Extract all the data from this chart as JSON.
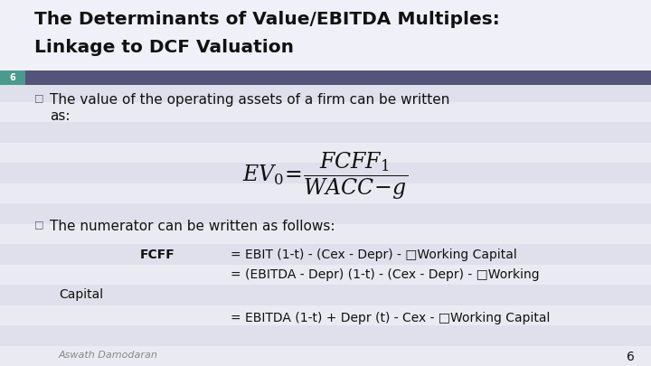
{
  "title_line1": "The Determinants of Value/EBITDA Multiples:",
  "title_line2": "Linkage to DCF Valuation",
  "slide_number": "6",
  "header_bar_color": "#54547A",
  "slide_number_bg": "#4A9B8E",
  "bg_color": "#EAEAF2",
  "stripe_light": "#E0E0EC",
  "stripe_dark": "#EAEAF2",
  "bullet1_line1": "The value of the operating assets of a firm can be written",
  "bullet1_line2": "as:",
  "formula": "$\\mathit{EV}_0\\!=\\!\\dfrac{\\mathit{FCFF}_1}{\\mathit{WACC}\\!-\\!g}$",
  "bullet2": "The numerator can be written as follows:",
  "fcff_label": "FCFF",
  "line1": "= EBIT (1-t) - (Cex - Depr) - □Working Capital",
  "line2": "= (EBITDA - Depr) (1-t) - (Cex - Depr) - □Working",
  "line2b": "Capital",
  "line3": "= EBITDA (1-t) + Depr (t) - Cex - □Working Capital",
  "footer": "Aswath Damodaran",
  "footer_num": "6",
  "title_color": "#111111",
  "text_color": "#111111",
  "bullet_box_color": "#54547A",
  "footer_color": "#888888"
}
